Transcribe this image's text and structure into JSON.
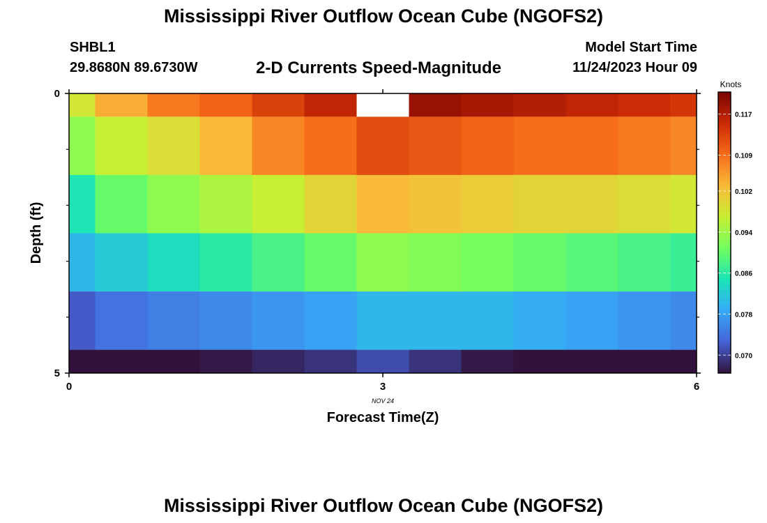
{
  "header": {
    "title": "Mississippi River Outflow Ocean Cube (NGOFS2)",
    "station_name": "SHBL1",
    "station_coords": "29.8680N  89.6730W",
    "subtitle": "2-D Currents Speed-Magnitude",
    "model_start_label": "Model Start Time",
    "model_start_value": "11/24/2023 Hour 09"
  },
  "footer": {
    "title": "Mississippi River Outflow Ocean Cube (NGOFS2)"
  },
  "chart_data": {
    "type": "heatmap",
    "xlabel": "Forecast Time(Z)",
    "ylabel": "Depth (ft)",
    "x_date_label": "NOV 24",
    "xlim": [
      0,
      6
    ],
    "ylim": [
      0,
      5
    ],
    "x_ticks": [
      0,
      3,
      6
    ],
    "y_ticks": [
      0,
      5
    ],
    "y_minor_ticks": [
      1,
      2,
      3,
      4
    ],
    "x_cells": [
      0,
      0.5,
      1,
      1.5,
      2,
      2.5,
      3,
      3.5,
      4,
      4.5,
      5,
      5.5,
      6
    ],
    "depth_cells": [
      0,
      1,
      2,
      3,
      4,
      5
    ],
    "values": [
      [
        0.098,
        0.104,
        0.108,
        0.11,
        0.113,
        0.116,
        null,
        0.119,
        0.118,
        0.117,
        0.116,
        0.115,
        0.114
      ],
      [
        0.093,
        0.097,
        0.099,
        0.103,
        0.107,
        0.109,
        0.112,
        0.111,
        0.11,
        0.109,
        0.109,
        0.108,
        0.107
      ],
      [
        0.085,
        0.09,
        0.093,
        0.095,
        0.097,
        0.1,
        0.103,
        0.102,
        0.101,
        0.1,
        0.1,
        0.099,
        0.098
      ],
      [
        0.08,
        0.082,
        0.084,
        0.086,
        0.088,
        0.09,
        0.093,
        0.092,
        0.091,
        0.09,
        0.089,
        0.088,
        0.087
      ],
      [
        0.072,
        0.074,
        0.075,
        0.076,
        0.077,
        0.078,
        0.08,
        0.08,
        0.08,
        0.079,
        0.078,
        0.077,
        0.076
      ],
      [
        0.066,
        0.066,
        0.066,
        0.067,
        0.068,
        0.069,
        0.071,
        0.069,
        0.067,
        0.066,
        0.065,
        0.064,
        0.063
      ]
    ],
    "colorbar": {
      "label": "Knots",
      "range": [
        0.0665,
        0.1213
      ],
      "ticks": [
        0.07,
        0.078,
        0.086,
        0.094,
        0.102,
        0.109,
        0.117
      ],
      "tick_labels": [
        "0.070",
        "0.078",
        "0.086",
        "0.094",
        "0.102",
        "0.109",
        "0.117"
      ],
      "colormap": [
        "#30123b",
        "#4662d7",
        "#36aaf9",
        "#1ae4b6",
        "#72fe5e",
        "#c8ef34",
        "#faba39",
        "#f66b19",
        "#ca2a04",
        "#7a0403"
      ]
    }
  }
}
